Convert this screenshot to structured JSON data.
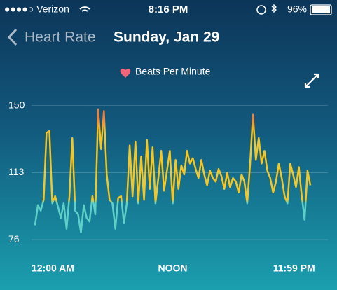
{
  "status_bar": {
    "carrier": "●●●●○ Verizon",
    "time": "8:16 PM",
    "battery": "96%"
  },
  "header": {
    "back": "Heart Rate",
    "date": "Sunday, Jan 29"
  },
  "chart_data": {
    "type": "line",
    "x": [
      0,
      0.25,
      0.5,
      0.75,
      1,
      1.25,
      1.5,
      1.75,
      2,
      2.25,
      2.5,
      2.75,
      3,
      3.25,
      3.5,
      3.75,
      4,
      4.25,
      4.5,
      4.75,
      5,
      5.25,
      5.5,
      5.75,
      6,
      6.25,
      6.5,
      6.75,
      7,
      7.25,
      7.5,
      7.75,
      8,
      8.25,
      8.5,
      8.75,
      9,
      9.25,
      9.5,
      9.75,
      10,
      10.25,
      10.5,
      10.75,
      11,
      11.25,
      11.5,
      11.75,
      12,
      12.25,
      12.5,
      12.75,
      13,
      13.25,
      13.5,
      13.75,
      14,
      14.25,
      14.5,
      14.75,
      15,
      15.25,
      15.5,
      15.75,
      16,
      16.25,
      16.5,
      16.75,
      17,
      17.25,
      17.5,
      17.75,
      18,
      18.25,
      18.5,
      18.75,
      19,
      19.25,
      19.5,
      19.75,
      20,
      20.25,
      20.5,
      20.75,
      21,
      21.25,
      21.5,
      21.75,
      22,
      22.25,
      22.5,
      22.75,
      23,
      23.25,
      23.5,
      23.75,
      24
    ],
    "series": [
      {
        "name": "Beats Per Minute",
        "color": "#f5c623",
        "values": [
          84,
          95,
          92,
          98,
          135,
          136,
          96,
          100,
          94,
          88,
          96,
          82,
          100,
          132,
          92,
          90,
          80,
          95,
          88,
          86,
          100,
          90,
          148,
          126,
          147,
          112,
          98,
          96,
          82,
          99,
          100,
          85,
          96,
          128,
          100,
          130,
          96,
          122,
          98,
          131,
          104,
          127,
          96,
          110,
          125,
          103,
          114,
          125,
          96,
          120,
          104,
          117,
          112,
          125,
          118,
          121,
          115,
          110,
          120,
          112,
          106,
          114,
          110,
          108,
          115,
          111,
          104,
          113,
          105,
          110,
          108,
          102,
          112,
          108,
          96,
          118,
          145,
          120,
          132,
          118,
          125,
          114,
          110,
          102,
          108,
          118,
          110,
          100,
          96,
          118,
          112,
          105,
          116,
          100,
          87,
          114,
          106
        ]
      }
    ],
    "xlim": [
      0,
      24
    ],
    "xticks": [
      {
        "value": 0,
        "label": "12:00 AM"
      },
      {
        "value": 12,
        "label": "NOON"
      },
      {
        "value": 23.98,
        "label": "11:59 PM"
      }
    ],
    "ylim": [
      71,
      158
    ],
    "yticks": [
      76,
      113,
      150
    ],
    "grid": true
  }
}
